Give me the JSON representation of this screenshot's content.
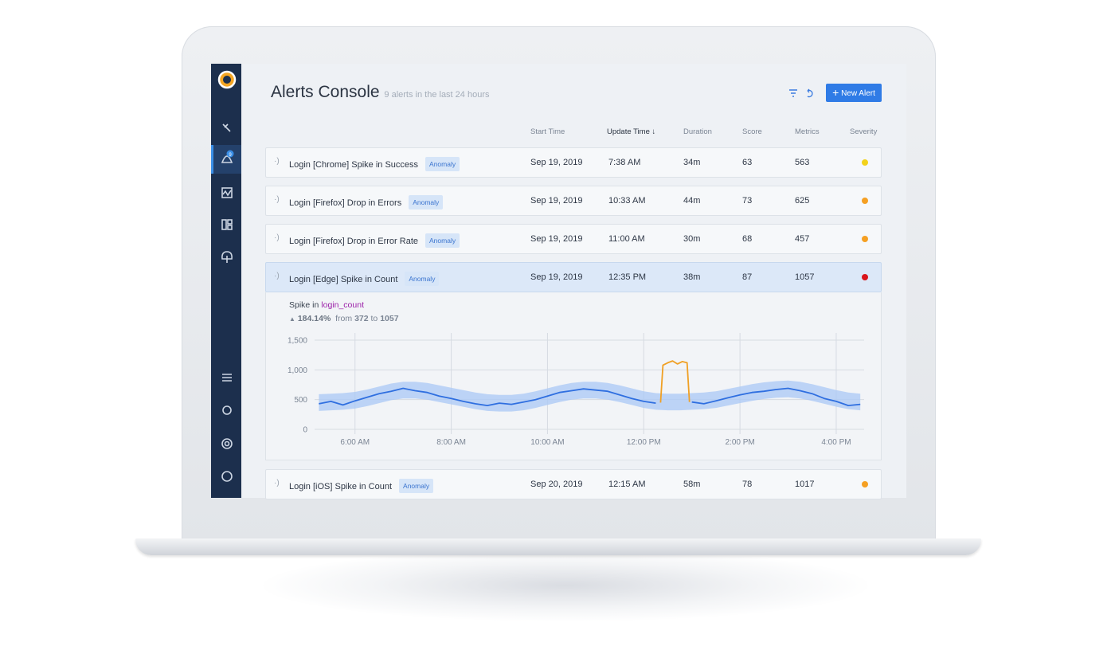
{
  "header": {
    "title": "Alerts Console",
    "subtitle": "9 alerts in the last 24 hours",
    "new_alert_button": "New Alert"
  },
  "sidebar": {
    "notification_badge": "9"
  },
  "table": {
    "columns": [
      "Start Time",
      "Update Time",
      "Duration",
      "Score",
      "Metrics",
      "Severity"
    ],
    "rows": [
      {
        "name": "Login [Chrome] Spike in Success",
        "tag": "Anomaly",
        "start": "Sep 19, 2019",
        "update": "7:38 AM",
        "duration": "34m",
        "score": 63,
        "metrics": 563,
        "severity_color": "#f2d21b"
      },
      {
        "name": "Login [Firefox] Drop in Errors",
        "tag": "Anomaly",
        "start": "Sep 19, 2019",
        "update": "10:33 AM",
        "duration": "44m",
        "score": 73,
        "metrics": 625,
        "severity_color": "#f5a023"
      },
      {
        "name": "Login [Firefox] Drop in Error Rate",
        "tag": "Anomaly",
        "start": "Sep 19, 2019",
        "update": "11:00 AM",
        "duration": "30m",
        "score": 68,
        "metrics": 457,
        "severity_color": "#f5a023"
      },
      {
        "name": "Login [Edge] Spike in Count",
        "tag": "Anomaly",
        "start": "Sep 19, 2019",
        "update": "12:35 PM",
        "duration": "38m",
        "score": 87,
        "metrics": 1057,
        "severity_color": "#d9141b"
      },
      {
        "name": "Login [iOS] Spike in Count",
        "tag": "Anomaly",
        "start": "Sep 20, 2019",
        "update": "12:15 AM",
        "duration": "58m",
        "score": 78,
        "metrics": 1017,
        "severity_color": "#f5a023"
      }
    ]
  },
  "detail": {
    "prefix": "Spike in",
    "metric": "login_count",
    "change": "184.14%",
    "from_label": "from",
    "from": 372,
    "to_label": "to",
    "to": 1057
  },
  "chart_data": {
    "type": "line",
    "x": [
      5.25,
      5.5,
      5.75,
      6,
      6.25,
      6.5,
      6.75,
      7,
      7.25,
      7.5,
      7.75,
      8,
      8.25,
      8.5,
      8.75,
      9,
      9.25,
      9.5,
      9.75,
      10,
      10.25,
      10.5,
      10.75,
      11,
      11.25,
      11.5,
      11.75,
      12,
      12.25,
      12.5,
      12.75,
      13,
      13.25,
      13.5,
      13.75,
      14,
      14.25,
      14.5,
      14.75,
      15,
      15.25,
      15.5,
      15.75,
      16,
      16.25,
      16.5
    ],
    "series": [
      {
        "color": "#2f6fe0",
        "values": [
          430,
          470,
          410,
          480,
          540,
          600,
          640,
          690,
          650,
          620,
          560,
          520,
          470,
          430,
          400,
          440,
          420,
          460,
          500,
          560,
          620,
          650,
          680,
          660,
          640,
          580,
          520,
          470,
          440,
          null,
          null,
          460,
          430,
          480,
          530,
          580,
          620,
          640,
          670,
          690,
          650,
          600,
          520,
          470,
          400,
          420
        ]
      },
      {
        "color": "#f0a024",
        "x": [
          12.35,
          12.4,
          12.5,
          12.6,
          12.7,
          12.8,
          12.9,
          12.95
        ],
        "values": [
          450,
          1080,
          1120,
          1150,
          1100,
          1140,
          1120,
          460
        ]
      }
    ],
    "band": {
      "color": "#a9c8f5",
      "upper": [
        590,
        600,
        610,
        630,
        670,
        720,
        770,
        800,
        800,
        780,
        740,
        700,
        660,
        620,
        590,
        580,
        580,
        600,
        640,
        690,
        740,
        780,
        800,
        800,
        780,
        740,
        690,
        640,
        610,
        600,
        600,
        610,
        620,
        640,
        680,
        720,
        760,
        790,
        810,
        820,
        800,
        760,
        710,
        660,
        620,
        600
      ],
      "lower": [
        310,
        320,
        330,
        350,
        390,
        440,
        490,
        520,
        520,
        500,
        460,
        420,
        380,
        340,
        310,
        300,
        300,
        320,
        360,
        410,
        460,
        500,
        520,
        520,
        500,
        460,
        410,
        360,
        330,
        320,
        320,
        330,
        340,
        360,
        400,
        440,
        480,
        510,
        530,
        540,
        520,
        480,
        430,
        380,
        340,
        320
      ]
    },
    "xlim": [
      5.16,
      16.58
    ],
    "ylim": [
      0,
      1500
    ],
    "xticks": [
      {
        "value": 6,
        "label": "6:00 AM"
      },
      {
        "value": 8,
        "label": "8:00 AM"
      },
      {
        "value": 10,
        "label": "10:00 AM"
      },
      {
        "value": 12,
        "label": "12:00 PM"
      },
      {
        "value": 14,
        "label": "2:00 PM"
      },
      {
        "value": 16,
        "label": "4:00 PM"
      }
    ],
    "yticks": [
      0,
      500,
      {
        "value": 1000,
        "label": "1,000"
      },
      {
        "value": 1500,
        "label": "1,500"
      }
    ],
    "grid": true
  }
}
